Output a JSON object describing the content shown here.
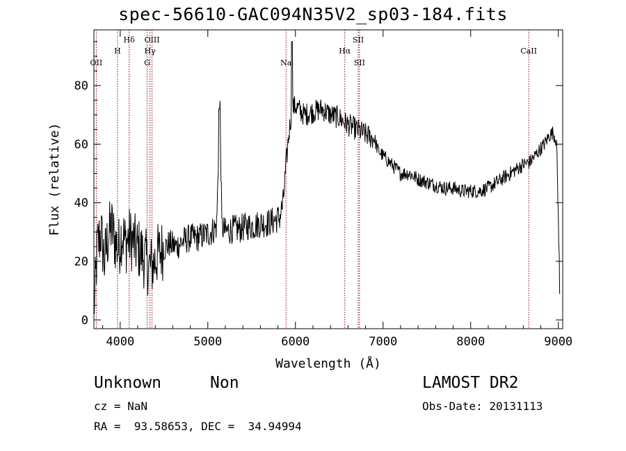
{
  "chart_data": {
    "type": "line",
    "title": "spec-56610-GAC094N35V2_sp03-184.fits",
    "xlabel": "Wavelength (Å)",
    "ylabel": "Flux (relative)",
    "xlim": [
      3700,
      9050
    ],
    "ylim": [
      -3,
      99
    ],
    "xticks": [
      "4000",
      "5000",
      "6000",
      "7000",
      "8000",
      "9000"
    ],
    "yticks": [
      "0",
      "20",
      "40",
      "60",
      "80"
    ],
    "series": [
      {
        "x": [
          3700,
          3740,
          3780,
          3820,
          3860,
          3900,
          3940,
          3980,
          4020,
          4060,
          4100,
          4140,
          4180,
          4220,
          4260,
          4300,
          4340,
          4380,
          4420,
          4480,
          4560,
          4640,
          4720,
          4800,
          4880,
          4960,
          5040,
          5100,
          5140,
          5160,
          5200,
          5280,
          5360,
          5440,
          5520,
          5600,
          5680,
          5760,
          5820,
          5860,
          5900,
          5920,
          5960,
          6000,
          6100,
          6200,
          6300,
          6400,
          6500,
          6580,
          6640,
          6700,
          6760,
          6820,
          6880,
          6900,
          6940,
          7000,
          7100,
          7200,
          7300,
          7400,
          7500,
          7600,
          7700,
          7800,
          7900,
          8000,
          8100,
          8200,
          8300,
          8400,
          8500,
          8600,
          8680,
          8760,
          8840,
          8900,
          8940,
          8980,
          9020
        ],
        "values": [
          2,
          25,
          30,
          20,
          28,
          32,
          27,
          24,
          30,
          26,
          28,
          27,
          25,
          24,
          22,
          20,
          18,
          19,
          22,
          24,
          26,
          25,
          27,
          28,
          28,
          29,
          30,
          32,
          72,
          32,
          30,
          31,
          31,
          32,
          32,
          33,
          33,
          34,
          35,
          40,
          55,
          62,
          72,
          73,
          70,
          71,
          72,
          70,
          69,
          67,
          66,
          65,
          64,
          63,
          62,
          62,
          58,
          56,
          53,
          50,
          50,
          48,
          47,
          46,
          45,
          45,
          44,
          44,
          44,
          45,
          47,
          49,
          51,
          53,
          54,
          57,
          60,
          63,
          64,
          61,
          9
        ]
      }
    ],
    "lines": [
      {
        "x": 3727,
        "label": "OII"
      },
      {
        "x": 3969,
        "label": "H"
      },
      {
        "x": 4102,
        "label": "Hδ"
      },
      {
        "x": 4307,
        "label": "G"
      },
      {
        "x": 4340,
        "label": "Hγ"
      },
      {
        "x": 4363,
        "label": "OIII"
      },
      {
        "x": 5893,
        "label": "Na"
      },
      {
        "x": 6563,
        "label": "Hα"
      },
      {
        "x": 6716,
        "label": "SII"
      },
      {
        "x": 6731,
        "label": "SII"
      },
      {
        "x": 8662,
        "label": "CaII"
      }
    ],
    "line_color": "#8b0000",
    "grid": false
  },
  "info": {
    "class": "Unknown",
    "subclass": "Non",
    "survey": "LAMOST DR2",
    "cz": "cz = NaN",
    "obs_date": "Obs-Date: 20131113",
    "radec": "RA =  93.58653, DEC =  34.94994"
  }
}
